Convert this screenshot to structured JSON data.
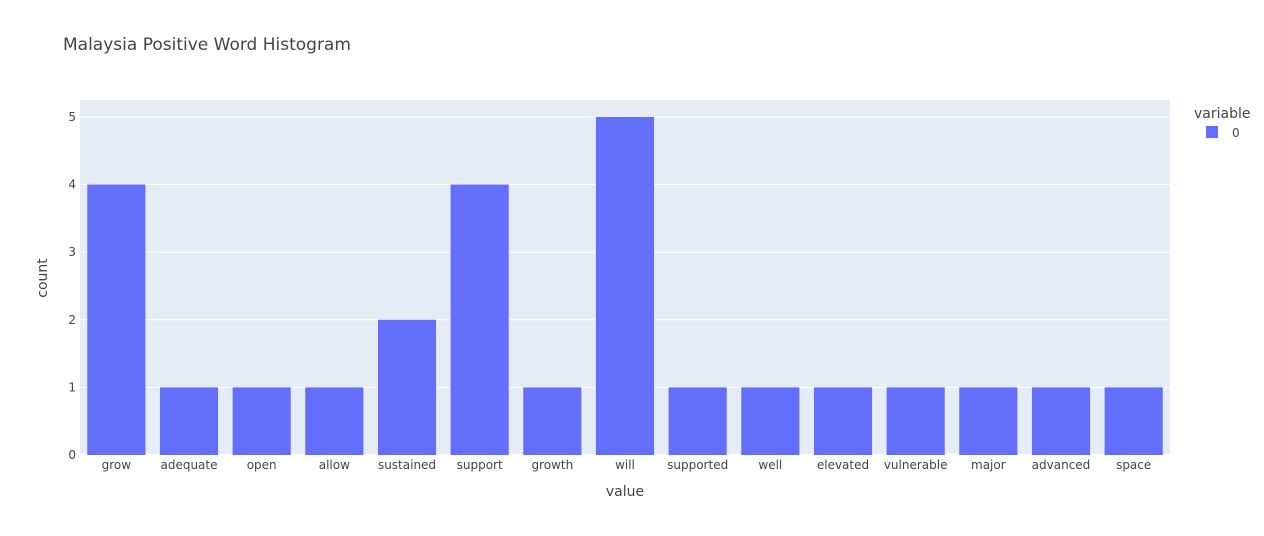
{
  "chart_data": {
    "type": "bar",
    "title": "Malaysia Positive Word Histogram",
    "xlabel": "value",
    "ylabel": "count",
    "categories": [
      "grow",
      "adequate",
      "open",
      "allow",
      "sustained",
      "support",
      "growth",
      "will",
      "supported",
      "well",
      "elevated",
      "vulnerable",
      "major",
      "advanced",
      "space"
    ],
    "series": [
      {
        "name": "0",
        "values": [
          4,
          1,
          1,
          1,
          2,
          4,
          1,
          5,
          1,
          1,
          1,
          1,
          1,
          1,
          1
        ]
      }
    ],
    "ylim": [
      0,
      5.25
    ],
    "yticks": [
      0,
      1,
      2,
      3,
      4,
      5
    ],
    "grid": true,
    "legend": {
      "title": "variable",
      "position": "top-right"
    },
    "colors": {
      "bar": "#636efa",
      "plot_bg": "#e5ecf6",
      "grid": "#ffffff"
    }
  }
}
